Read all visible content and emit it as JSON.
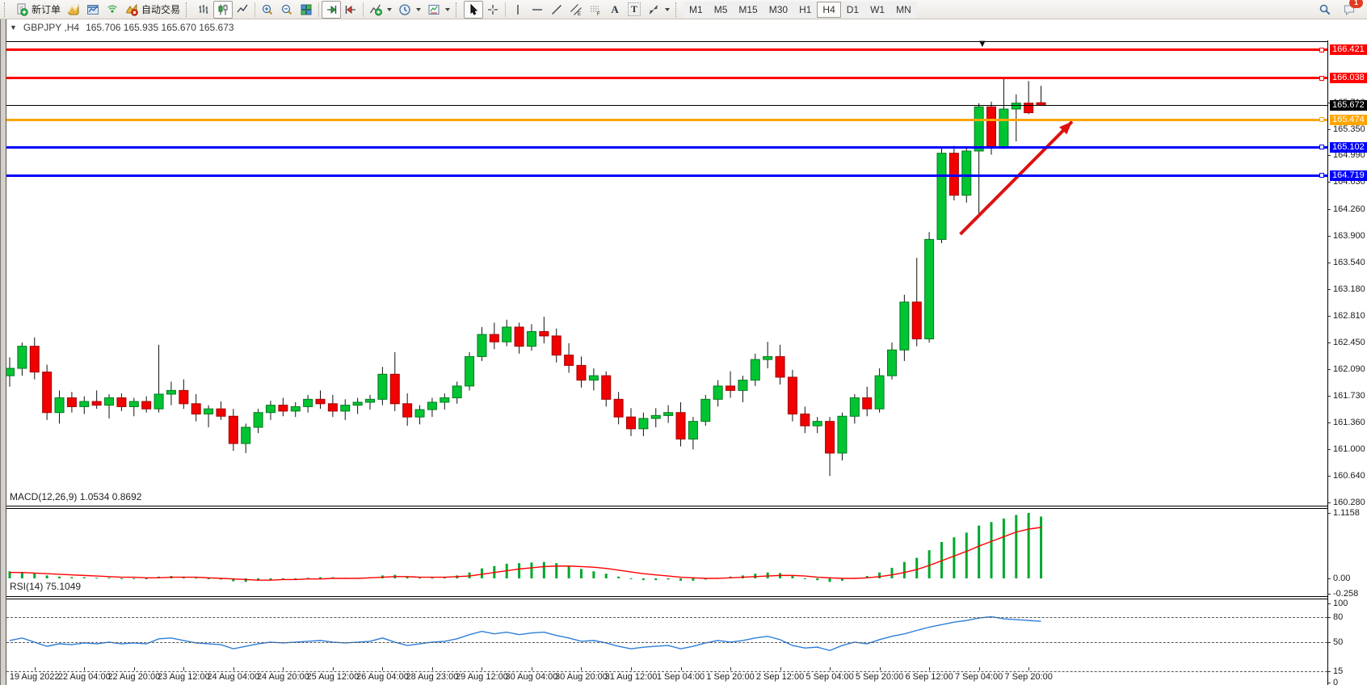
{
  "window": {
    "symbol_period": "GBPJPY ,H4",
    "ohlc": "165.706 165.935 165.670 165.673"
  },
  "toolbar": {
    "new_order": "新订单",
    "autotrading": "自动交易",
    "text_tool": "A",
    "label_tool": "T",
    "timeframes": [
      "M1",
      "M5",
      "M15",
      "M30",
      "H1",
      "H4",
      "D1",
      "W1",
      "MN"
    ],
    "active_timeframe": "H4",
    "notification_count": "1"
  },
  "chart_data": [
    {
      "type": "candlestick",
      "title": "GBPJPY ,H4 165.706 165.935 165.670 165.673",
      "ylim": [
        160.236,
        166.541
      ],
      "y_ticks": [
        "165.710",
        "165.350",
        "164.990",
        "164.630",
        "164.260",
        "163.900",
        "163.540",
        "163.180",
        "162.810",
        "162.450",
        "162.090",
        "161.730",
        "161.360",
        "161.000",
        "160.640",
        "160.280"
      ],
      "x_labels": [
        "19 Aug 2022",
        "22 Aug 04:00",
        "22 Aug 20:00",
        "23 Aug 12:00",
        "24 Aug 04:00",
        "24 Aug 20:00",
        "25 Aug 12:00",
        "26 Aug 04:00",
        "28 Aug 23:00",
        "29 Aug 12:00",
        "30 Aug 04:00",
        "30 Aug 20:00",
        "31 Aug 12:00",
        "1 Sep 04:00",
        "1 Sep 20:00",
        "2 Sep 12:00",
        "5 Sep 04:00",
        "5 Sep 20:00",
        "6 Sep 12:00",
        "7 Sep 04:00",
        "7 Sep 20:00"
      ],
      "up_color": "#00c432",
      "down_color": "#f10000",
      "candles": [
        [
          162.0,
          162.25,
          161.85,
          162.1
        ],
        [
          162.1,
          162.45,
          162.0,
          162.4
        ],
        [
          162.4,
          162.52,
          161.95,
          162.05
        ],
        [
          162.05,
          162.15,
          161.4,
          161.5
        ],
        [
          161.5,
          161.8,
          161.35,
          161.7
        ],
        [
          161.7,
          161.78,
          161.5,
          161.58
        ],
        [
          161.58,
          161.72,
          161.48,
          161.65
        ],
        [
          161.65,
          161.8,
          161.55,
          161.6
        ],
        [
          161.6,
          161.75,
          161.42,
          161.7
        ],
        [
          161.7,
          161.76,
          161.52,
          161.58
        ],
        [
          161.58,
          161.7,
          161.45,
          161.65
        ],
        [
          161.65,
          161.72,
          161.5,
          161.55
        ],
        [
          161.55,
          162.42,
          161.5,
          161.75
        ],
        [
          161.75,
          161.92,
          161.6,
          161.8
        ],
        [
          161.8,
          161.95,
          161.55,
          161.62
        ],
        [
          161.62,
          161.75,
          161.38,
          161.48
        ],
        [
          161.48,
          161.6,
          161.3,
          161.55
        ],
        [
          161.55,
          161.65,
          161.4,
          161.45
        ],
        [
          161.45,
          161.55,
          160.98,
          161.08
        ],
        [
          161.08,
          161.35,
          160.95,
          161.3
        ],
        [
          161.3,
          161.55,
          161.22,
          161.5
        ],
        [
          161.5,
          161.66,
          161.4,
          161.6
        ],
        [
          161.6,
          161.7,
          161.45,
          161.52
        ],
        [
          161.52,
          161.64,
          161.44,
          161.58
        ],
        [
          161.58,
          161.74,
          161.5,
          161.68
        ],
        [
          161.68,
          161.8,
          161.55,
          161.62
        ],
        [
          161.62,
          161.74,
          161.44,
          161.52
        ],
        [
          161.52,
          161.68,
          161.4,
          161.6
        ],
        [
          161.6,
          161.7,
          161.48,
          161.64
        ],
        [
          161.64,
          161.74,
          161.54,
          161.68
        ],
        [
          161.68,
          162.12,
          161.6,
          162.02
        ],
        [
          162.02,
          162.32,
          161.52,
          161.62
        ],
        [
          161.62,
          161.76,
          161.32,
          161.44
        ],
        [
          161.44,
          161.6,
          161.34,
          161.54
        ],
        [
          161.54,
          161.7,
          161.44,
          161.64
        ],
        [
          161.64,
          161.76,
          161.54,
          161.7
        ],
        [
          161.7,
          161.92,
          161.62,
          161.86
        ],
        [
          161.86,
          162.32,
          161.8,
          162.26
        ],
        [
          162.26,
          162.66,
          162.2,
          162.56
        ],
        [
          162.56,
          162.72,
          162.36,
          162.46
        ],
        [
          162.46,
          162.76,
          162.4,
          162.66
        ],
        [
          162.66,
          162.72,
          162.3,
          162.4
        ],
        [
          162.4,
          162.7,
          162.34,
          162.6
        ],
        [
          162.6,
          162.8,
          162.44,
          162.54
        ],
        [
          162.54,
          162.64,
          162.18,
          162.28
        ],
        [
          162.28,
          162.44,
          162.04,
          162.14
        ],
        [
          162.14,
          162.26,
          161.84,
          161.94
        ],
        [
          161.94,
          162.1,
          161.8,
          162.0
        ],
        [
          162.0,
          162.06,
          161.58,
          161.68
        ],
        [
          161.68,
          161.78,
          161.34,
          161.44
        ],
        [
          161.44,
          161.56,
          161.18,
          161.28
        ],
        [
          161.28,
          161.5,
          161.18,
          161.42
        ],
        [
          161.42,
          161.56,
          161.3,
          161.46
        ],
        [
          161.46,
          161.6,
          161.36,
          161.5
        ],
        [
          161.5,
          161.64,
          161.04,
          161.14
        ],
        [
          161.14,
          161.44,
          161.0,
          161.38
        ],
        [
          161.38,
          161.74,
          161.32,
          161.68
        ],
        [
          161.68,
          161.94,
          161.58,
          161.86
        ],
        [
          161.86,
          162.06,
          161.7,
          161.8
        ],
        [
          161.8,
          162.0,
          161.64,
          161.94
        ],
        [
          161.94,
          162.3,
          161.86,
          162.22
        ],
        [
          162.22,
          162.46,
          162.1,
          162.26
        ],
        [
          162.26,
          162.42,
          161.88,
          161.98
        ],
        [
          161.98,
          162.08,
          161.38,
          161.48
        ],
        [
          161.48,
          161.58,
          161.22,
          161.32
        ],
        [
          161.32,
          161.44,
          161.22,
          161.38
        ],
        [
          161.38,
          161.44,
          160.64,
          160.95
        ],
        [
          160.95,
          161.5,
          160.85,
          161.45
        ],
        [
          161.45,
          161.75,
          161.35,
          161.7
        ],
        [
          161.7,
          161.85,
          161.45,
          161.55
        ],
        [
          161.55,
          162.1,
          161.5,
          162.0
        ],
        [
          162.0,
          162.45,
          161.95,
          162.35
        ],
        [
          162.35,
          163.1,
          162.2,
          163.0
        ],
        [
          163.0,
          163.6,
          162.4,
          162.5
        ],
        [
          162.5,
          163.95,
          162.45,
          163.85
        ],
        [
          163.85,
          165.1,
          163.8,
          165.02
        ],
        [
          165.02,
          165.12,
          164.38,
          164.45
        ],
        [
          164.45,
          165.1,
          164.35,
          165.05
        ],
        [
          165.05,
          165.7,
          164.2,
          165.65
        ],
        [
          165.65,
          165.72,
          165.0,
          165.1
        ],
        [
          165.1,
          166.03,
          165.08,
          165.62
        ],
        [
          165.62,
          165.82,
          165.18,
          165.7
        ],
        [
          165.7,
          166.0,
          165.55,
          165.57
        ],
        [
          165.706,
          165.935,
          165.67,
          165.673
        ]
      ],
      "lines": [
        {
          "price": 166.421,
          "label": "166.421",
          "color": "#ff0000",
          "thickness": 3
        },
        {
          "price": 166.038,
          "label": "166.038",
          "color": "#ff0000",
          "thickness": 3
        },
        {
          "price": 165.474,
          "label": "165.474",
          "color": "#ffa500",
          "thickness": 3
        },
        {
          "price": 165.102,
          "label": "165.102",
          "color": "#0000ff",
          "thickness": 3
        },
        {
          "price": 164.719,
          "label": "164.719",
          "color": "#0000ff",
          "thickness": 3
        }
      ],
      "current_price": {
        "value": 165.672,
        "label": "165.672",
        "color": "#000000"
      },
      "arrow": {
        "from": {
          "bar": 76.5,
          "price": 163.92
        },
        "to": {
          "bar": 85.5,
          "price": 165.45
        },
        "color": "#dd1111"
      }
    },
    {
      "type": "bar",
      "name": "MACD",
      "label": "MACD(12,26,9) 1.0534 0.8692",
      "ylim": [
        -0.303,
        1.198
      ],
      "axis": [
        {
          "value": 1.1158,
          "label": "1.1158"
        },
        {
          "value": 0,
          "label": "0.00"
        },
        {
          "value": -0.258,
          "label": "-0.258"
        }
      ],
      "bar_color": "#00a82d",
      "signal_color": "#ff0000",
      "values": [
        0.12,
        0.1,
        0.09,
        0.05,
        0.03,
        0.02,
        0.02,
        0.01,
        0.01,
        0.0,
        0.0,
        -0.01,
        0.03,
        0.04,
        0.03,
        0.01,
        -0.01,
        -0.02,
        -0.05,
        -0.06,
        -0.04,
        -0.02,
        -0.01,
        0.0,
        0.01,
        0.02,
        0.02,
        0.01,
        0.01,
        0.02,
        0.05,
        0.06,
        0.03,
        0.01,
        0.01,
        0.02,
        0.05,
        0.1,
        0.17,
        0.21,
        0.25,
        0.26,
        0.27,
        0.28,
        0.26,
        0.22,
        0.16,
        0.12,
        0.08,
        0.03,
        -0.01,
        -0.03,
        -0.03,
        -0.02,
        -0.04,
        -0.04,
        -0.02,
        0.01,
        0.03,
        0.05,
        0.08,
        0.1,
        0.09,
        0.04,
        -0.01,
        -0.03,
        -0.06,
        -0.04,
        0.01,
        0.04,
        0.1,
        0.18,
        0.28,
        0.35,
        0.48,
        0.62,
        0.7,
        0.78,
        0.9,
        0.96,
        1.02,
        1.08,
        1.1158,
        1.0534
      ],
      "signal": [
        0.1,
        0.1,
        0.09,
        0.08,
        0.07,
        0.06,
        0.05,
        0.04,
        0.03,
        0.02,
        0.02,
        0.01,
        0.01,
        0.02,
        0.02,
        0.02,
        0.01,
        0.0,
        -0.01,
        -0.02,
        -0.03,
        -0.03,
        -0.02,
        -0.02,
        -0.01,
        -0.01,
        0.0,
        0.0,
        0.0,
        0.01,
        0.02,
        0.03,
        0.03,
        0.02,
        0.02,
        0.02,
        0.03,
        0.04,
        0.07,
        0.1,
        0.13,
        0.16,
        0.18,
        0.2,
        0.21,
        0.21,
        0.2,
        0.19,
        0.17,
        0.14,
        0.11,
        0.08,
        0.06,
        0.04,
        0.02,
        0.01,
        0.0,
        0.0,
        0.01,
        0.02,
        0.03,
        0.04,
        0.05,
        0.05,
        0.04,
        0.02,
        0.01,
        0.0,
        0.0,
        0.01,
        0.03,
        0.06,
        0.1,
        0.15,
        0.22,
        0.3,
        0.38,
        0.46,
        0.55,
        0.63,
        0.71,
        0.79,
        0.84,
        0.8692
      ]
    },
    {
      "type": "line",
      "name": "RSI",
      "label": "RSI(14) 75.1049",
      "ylim": [
        -2.4,
        102.3
      ],
      "axis": [
        {
          "value": 100,
          "label": "100"
        },
        {
          "value": 80,
          "label": "80"
        },
        {
          "value": 50,
          "label": "50"
        },
        {
          "value": 15,
          "label": "15"
        },
        {
          "value": 0,
          "label": "0"
        }
      ],
      "levels": [
        80,
        50,
        15
      ],
      "line_color": "#2f7ed8",
      "values": [
        52,
        55,
        50,
        45,
        48,
        47,
        49,
        48,
        50,
        48,
        49,
        48,
        54,
        55,
        52,
        49,
        48,
        47,
        42,
        45,
        48,
        50,
        49,
        50,
        51,
        52,
        50,
        49,
        50,
        51,
        55,
        50,
        46,
        48,
        50,
        51,
        54,
        59,
        63,
        60,
        62,
        59,
        61,
        62,
        58,
        55,
        51,
        52,
        49,
        45,
        42,
        44,
        45,
        46,
        42,
        45,
        49,
        52,
        50,
        52,
        55,
        57,
        53,
        46,
        43,
        44,
        40,
        46,
        50,
        48,
        53,
        57,
        60,
        64,
        68,
        71,
        74,
        76,
        79,
        80.5,
        78,
        77,
        76,
        75.1
      ]
    }
  ]
}
